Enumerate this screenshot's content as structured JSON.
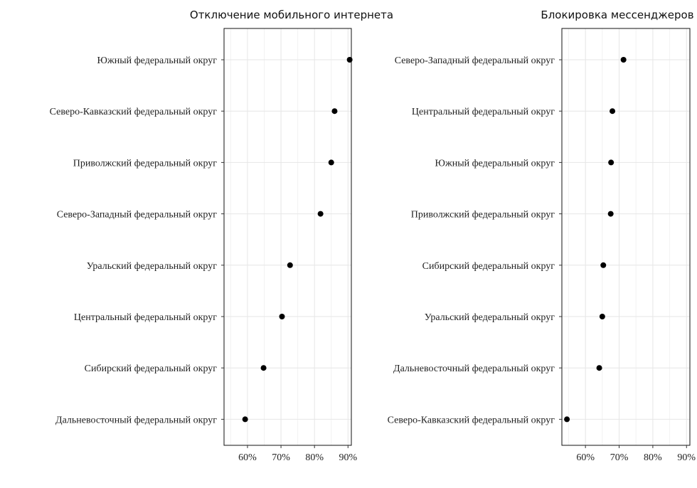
{
  "chart_data": [
    {
      "type": "scatter",
      "title": "Отключение мобильного интернета",
      "xlabel": "",
      "ylabel": "",
      "xlim": [
        53,
        91
      ],
      "xticks": [
        "60%",
        "70%",
        "80%",
        "90%"
      ],
      "xtick_values": [
        60,
        70,
        80,
        90
      ],
      "grid": true,
      "categories": [
        "Южный федеральный округ",
        "Северо-Кавказский федеральный округ",
        "Приволжский федеральный округ",
        "Северо-Западный федеральный округ",
        "Уральский федеральный округ",
        "Центральный федеральный округ",
        "Сибирский федеральный округ",
        "Дальневосточный федеральный округ"
      ],
      "values": [
        90.5,
        86,
        85,
        81.8,
        72.7,
        70.3,
        64.8,
        59.3
      ]
    },
    {
      "type": "scatter",
      "title": "Блокировка мессенджеров",
      "xlabel": "",
      "ylabel": "",
      "xlim": [
        53,
        91
      ],
      "xticks": [
        "60%",
        "70%",
        "80%",
        "90%"
      ],
      "xtick_values": [
        60,
        70,
        80,
        90
      ],
      "grid": true,
      "categories": [
        "Северо-Западный федеральный округ",
        "Центральный федеральный округ",
        "Южный федеральный округ",
        "Приволжский федеральный округ",
        "Сибирский федеральный округ",
        "Уральский федеральный округ",
        "Дальневосточный федеральный округ",
        "Северо-Кавказский федеральный округ"
      ],
      "values": [
        71.3,
        68,
        67.6,
        67.5,
        65.3,
        65,
        64.1,
        54.5
      ]
    }
  ]
}
